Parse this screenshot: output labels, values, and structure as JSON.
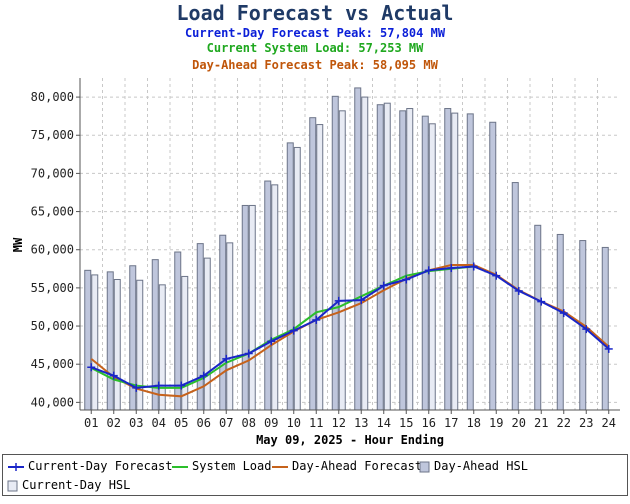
{
  "header": {
    "title": "Load Forecast vs Actual",
    "line1": "Current-Day Forecast Peak:  57,804 MW",
    "line2": "Current System Load:  57,253 MW",
    "line3": "Day-Ahead Forecast Peak:  58,095 MW"
  },
  "colors": {
    "title": "#1f3a66",
    "line1": "#0a1ed8",
    "line2": "#1fa81f",
    "line3": "#c0560a",
    "current_day": "#1a26c8",
    "system": "#2bbf2b",
    "day_ahead": "#c6621b",
    "da_hsl_fill": "#bfc6dc",
    "cd_hsl_fill": "#e8ebf4",
    "bar_stroke": "#6c7488"
  },
  "legend": [
    {
      "key": "current_day",
      "label": "Current-Day Forecast"
    },
    {
      "key": "system",
      "label": "System Load"
    },
    {
      "key": "day_ahead",
      "label": "Day-Ahead Forecast"
    },
    {
      "key": "da_hsl",
      "label": "Day-Ahead HSL"
    },
    {
      "key": "cd_hsl",
      "label": "Current-Day HSL"
    }
  ],
  "chart_data": {
    "type": "bar",
    "xlabel": "May 09, 2025 - Hour Ending",
    "ylabel": "MW",
    "ylim": [
      39000,
      82500
    ],
    "yticks": [
      40000,
      45000,
      50000,
      55000,
      60000,
      65000,
      70000,
      75000,
      80000
    ],
    "ytick_labels": [
      "40,000",
      "45,000",
      "50,000",
      "55,000",
      "60,000",
      "65,000",
      "70,000",
      "75,000",
      "80,000"
    ],
    "grid": true,
    "legend_position": "bottom",
    "categories": [
      "01",
      "02",
      "03",
      "04",
      "05",
      "06",
      "07",
      "08",
      "09",
      "10",
      "11",
      "12",
      "13",
      "14",
      "15",
      "16",
      "17",
      "18",
      "19",
      "20",
      "21",
      "22",
      "23",
      "24"
    ],
    "bars": [
      {
        "name": "Day-Ahead HSL",
        "values": [
          57300,
          57100,
          57900,
          58700,
          59700,
          60800,
          61900,
          65800,
          69000,
          74000,
          77300,
          80100,
          81200,
          79000,
          78200,
          77500,
          78500,
          77800,
          76700,
          68800,
          63200,
          62000,
          61200,
          60300
        ]
      },
      {
        "name": "Current-Day HSL",
        "values": [
          56700,
          56100,
          56000,
          55400,
          56500,
          58900,
          60900,
          65800,
          68500,
          73400,
          76400,
          78200,
          80000,
          79200,
          78500,
          76500,
          77900,
          null,
          null,
          null,
          null,
          null,
          null,
          null
        ]
      }
    ],
    "series": [
      {
        "name": "Current-Day Forecast",
        "values": [
          44600,
          43500,
          41900,
          42200,
          42200,
          43500,
          45700,
          46400,
          48000,
          49400,
          50800,
          53300,
          53400,
          55300,
          56100,
          57300,
          57600,
          57800,
          56600,
          54600,
          53200,
          51700,
          49600,
          47000
        ]
      },
      {
        "name": "System Load",
        "values": [
          44500,
          43000,
          42200,
          41900,
          41900,
          43200,
          45200,
          46400,
          48200,
          49600,
          51800,
          52500,
          53900,
          55300,
          56600,
          57200,
          57500,
          57800,
          null,
          null,
          null,
          null,
          null,
          null
        ]
      },
      {
        "name": "Day-Ahead Forecast",
        "values": [
          45700,
          43300,
          41800,
          41000,
          40800,
          42100,
          44200,
          45500,
          47500,
          49300,
          50800,
          51800,
          53000,
          54700,
          56200,
          57300,
          58000,
          58000,
          56700,
          54700,
          53200,
          51900,
          49900,
          47300
        ]
      }
    ]
  }
}
